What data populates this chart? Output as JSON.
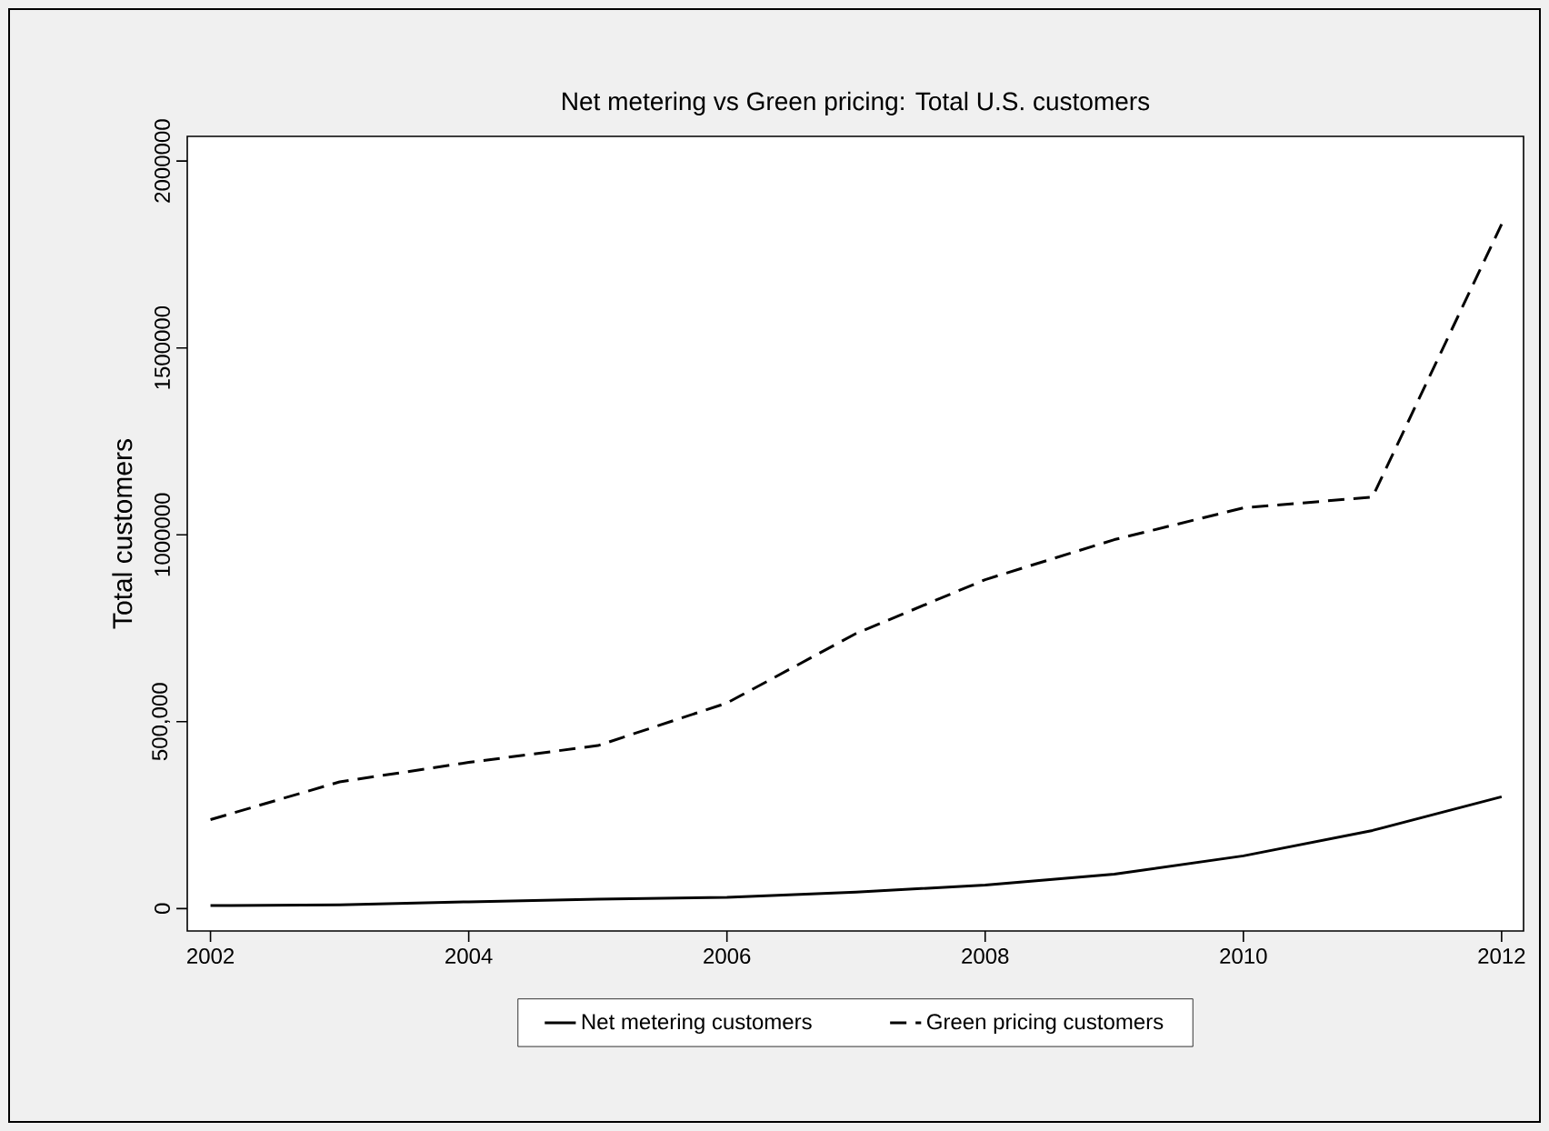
{
  "chart_data": {
    "type": "line",
    "title": "Net metering vs Green pricing: Total U.S. customers",
    "ylabel": "Total customers",
    "x": [
      2002,
      2003,
      2004,
      2005,
      2006,
      2007,
      2008,
      2009,
      2010,
      2011,
      2012
    ],
    "series": [
      {
        "name": "Net metering customers",
        "color": "#000000",
        "line_style": "solid",
        "values": [
          8000,
          10000,
          18000,
          25000,
          30000,
          44000,
          63000,
          92000,
          141000,
          209000,
          299000
        ]
      },
      {
        "name": "Green pricing customers",
        "color": "#000000",
        "line_style": "dashed",
        "values": [
          238000,
          339000,
          391000,
          436000,
          550000,
          736000,
          880000,
          987000,
          1072000,
          1101000,
          1831000
        ]
      }
    ],
    "xlim": [
      2001.82,
      2012.17
    ],
    "ylim": [
      -60000,
      2066000
    ],
    "xticks": [
      2002,
      2004,
      2006,
      2008,
      2010,
      2012
    ],
    "yticks": [
      0,
      {
        "value": 500000,
        "label": "500,000"
      },
      1000000,
      1500000,
      2000000
    ],
    "grid": false,
    "legend": "bottom",
    "marker": "none"
  }
}
